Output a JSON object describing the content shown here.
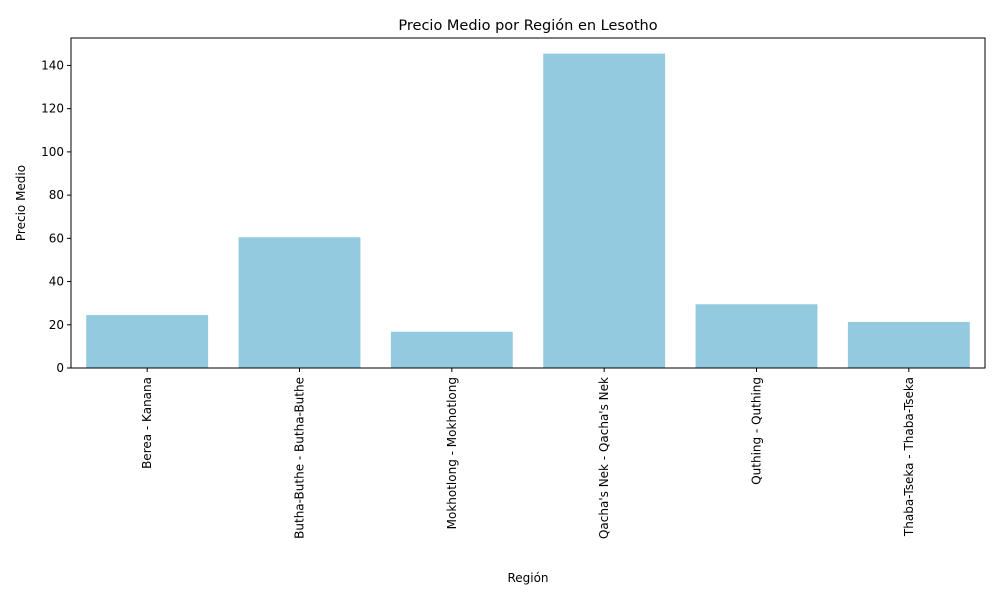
{
  "chart_data": {
    "type": "bar",
    "title": "Precio Medio por Región en Lesotho",
    "xlabel": "Región",
    "ylabel": "Precio Medio",
    "categories": [
      "Berea - Kanana",
      "Butha-Buthe - Butha-Buthe",
      "Mokhotlong - Mokhotlong",
      "Qacha's Nek - Qacha's Nek",
      "Quthing - Quthing",
      "Thaba-Tseka - Thaba-Tseka"
    ],
    "values": [
      24.5,
      60.5,
      16.8,
      145.5,
      29.5,
      21.3
    ],
    "ylim": [
      0,
      152.7
    ],
    "yticks": [
      0,
      20,
      40,
      60,
      80,
      100,
      120,
      140
    ],
    "bar_color": "#94cae0",
    "grid": false,
    "legend": "none"
  }
}
